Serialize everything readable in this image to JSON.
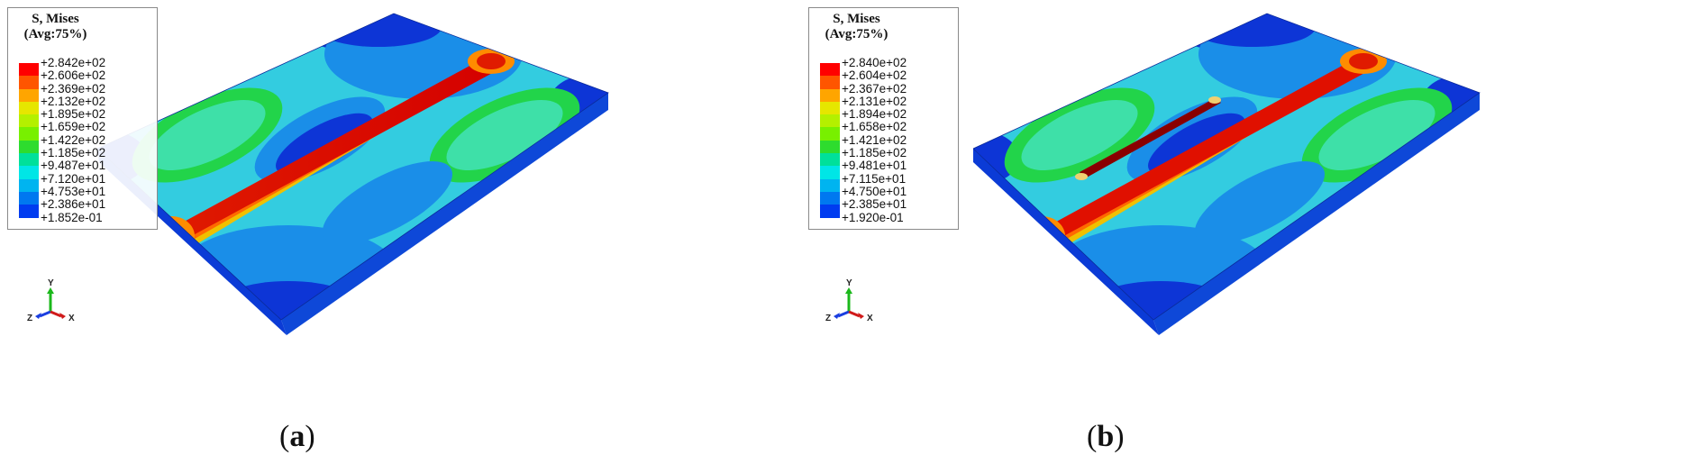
{
  "panels": [
    {
      "caption_open": "(",
      "caption_letter": "a",
      "caption_close": ")",
      "legend": {
        "title_line1": "S, Mises",
        "title_line2": "(Avg:75%)",
        "values": [
          "+2.842e+02",
          "+2.606e+02",
          "+2.369e+02",
          "+2.132e+02",
          "+1.895e+02",
          "+1.659e+02",
          "+1.422e+02",
          "+1.185e+02",
          "+9.487e+01",
          "+7.120e+01",
          "+4.753e+01",
          "+2.386e+01",
          "+1.852e-01"
        ]
      },
      "triad": {
        "y": "Y",
        "z": "Z",
        "x": "X"
      }
    },
    {
      "caption_open": "(",
      "caption_letter": "b",
      "caption_close": ")",
      "legend": {
        "title_line1": "S, Mises",
        "title_line2": "(Avg:75%)",
        "values": [
          "+2.840e+02",
          "+2.604e+02",
          "+2.367e+02",
          "+2.131e+02",
          "+1.894e+02",
          "+1.658e+02",
          "+1.421e+02",
          "+1.185e+02",
          "+9.481e+01",
          "+7.115e+01",
          "+4.750e+01",
          "+2.385e+01",
          "+1.920e-01"
        ]
      },
      "triad": {
        "y": "Y",
        "z": "Z",
        "x": "X"
      }
    }
  ],
  "colormap": [
    "#ff0000",
    "#ff5500",
    "#ffa500",
    "#e6e600",
    "#b4f000",
    "#78f000",
    "#2edc2e",
    "#00e09a",
    "#00e6e6",
    "#00b4f0",
    "#0078f0",
    "#003cf0",
    "#0000dc"
  ]
}
